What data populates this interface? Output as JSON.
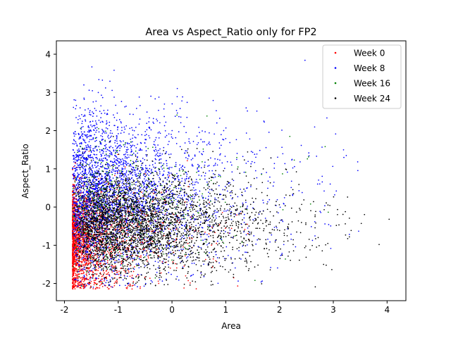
{
  "chart_data": {
    "type": "scatter",
    "title": "Area vs Aspect_Ratio only for FP2",
    "xlabel": "Area",
    "ylabel": "Aspect_Ratio",
    "xlim": [
      -2.15,
      4.35
    ],
    "ylim": [
      -2.45,
      4.35
    ],
    "xticks": [
      -2,
      -1,
      0,
      1,
      2,
      3,
      4
    ],
    "yticks": [
      -2,
      -1,
      0,
      1,
      2,
      3,
      4
    ],
    "grid": false,
    "legend_position": "top-right",
    "series": [
      {
        "name": "Week 0",
        "color": "#ff0000",
        "marker": "dot",
        "count": 2200,
        "distribution": {
          "x_min": -1.85,
          "x_skew": 0.55,
          "x_scale": 0.75,
          "x_cap": 1.6,
          "y_mean": -0.85,
          "y_sd": 0.75,
          "y_min": -2.15,
          "y_max": 1.6,
          "seed": 11
        }
      },
      {
        "name": "Week 8",
        "color": "#0000ff",
        "marker": "dot",
        "count": 3200,
        "distribution": {
          "x_min": -1.85,
          "x_skew": 1.2,
          "x_scale": 0.9,
          "x_cap": 3.5,
          "y_mean": 0.35,
          "y_sd": 1.0,
          "y_min": -2.1,
          "y_max": 4.0,
          "seed": 23
        }
      },
      {
        "name": "Week 16",
        "color": "#008000",
        "marker": "dot",
        "count": 450,
        "distribution": {
          "x_min": -1.85,
          "x_skew": 1.4,
          "x_scale": 0.8,
          "x_cap": 3.2,
          "y_mean": 0.0,
          "y_sd": 0.85,
          "y_min": -2.1,
          "y_max": 3.0,
          "seed": 37
        }
      },
      {
        "name": "Week 24",
        "color": "#000000",
        "marker": "dot",
        "count": 3400,
        "distribution": {
          "x_min": -1.85,
          "x_skew": 1.9,
          "x_scale": 0.75,
          "x_cap": 4.1,
          "y_mean": -0.45,
          "y_sd": 0.65,
          "y_min": -2.1,
          "y_max": 2.2,
          "seed": 51
        }
      }
    ]
  }
}
